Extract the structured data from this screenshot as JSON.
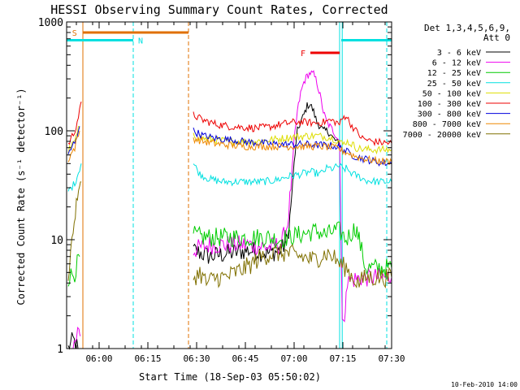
{
  "chart_data": {
    "type": "line",
    "title": "HESSI Observing Summary Count Rates, Corrected",
    "xlabel": "Start Time (18-Sep-03 05:50:02)",
    "ylabel": "Corrected Count Rate (s⁻¹ detector⁻¹)",
    "x_unit": "minutes since 05:50:02",
    "xlim": [
      0,
      100
    ],
    "ylim": [
      1,
      1000
    ],
    "yscale": "log",
    "x_ticks": [
      {
        "x": 10,
        "label": "06:00"
      },
      {
        "x": 25,
        "label": "06:15"
      },
      {
        "x": 40,
        "label": "06:30"
      },
      {
        "x": 55,
        "label": "06:45"
      },
      {
        "x": 70,
        "label": "07:00"
      },
      {
        "x": 85,
        "label": "07:15"
      },
      {
        "x": 100,
        "label": "07:30"
      }
    ],
    "y_ticks": [
      {
        "y": 1,
        "label": "1"
      },
      {
        "y": 10,
        "label": "10"
      },
      {
        "y": 100,
        "label": "100"
      },
      {
        "y": 1000,
        "label": "1000"
      }
    ],
    "legend": {
      "header": [
        "Det 1,3,4,5,6,9,",
        "Att 0"
      ],
      "position": "right"
    },
    "footer_date": "10-Feb-2010 14:00",
    "flags": [
      {
        "label": "S",
        "color": "#e07000",
        "y": 800,
        "x_start": 5,
        "x_end": 37.5,
        "label_x": 1.7
      },
      {
        "label": "N",
        "color": "#00e0e0",
        "y": 680,
        "x_start": 0,
        "x_end": 20.5,
        "label_x": 22.0
      },
      {
        "label": "N",
        "color": "#00e0e0",
        "y": 680,
        "x_start": 84.5,
        "x_end": 100,
        "label_x": null
      },
      {
        "label": "F",
        "color": "#ee0000",
        "y": 520,
        "x_start": 75,
        "x_end": 84,
        "label_x": 72.0
      }
    ],
    "vlines": [
      {
        "x": 0.0,
        "color": "#00e0e0",
        "dash": false
      },
      {
        "x": 5.0,
        "color": "#e07000",
        "dash": false
      },
      {
        "x": 20.5,
        "color": "#00e0e0",
        "dash": true
      },
      {
        "x": 37.5,
        "color": "#e07000",
        "dash": true
      },
      {
        "x": 84.0,
        "color": "#00e0e0",
        "dash": false
      },
      {
        "x": 84.8,
        "color": "#00e0e0",
        "dash": false
      },
      {
        "x": 98.5,
        "color": "#00e0e0",
        "dash": true
      }
    ],
    "series": [
      {
        "name": "3 - 6 keV",
        "color": "#000000",
        "segments": [
          [
            [
              0.5,
              1.0
            ],
            [
              2.0,
              1.2
            ],
            [
              3.5,
              1.0
            ]
          ],
          [
            [
              39,
              8.0
            ],
            [
              44,
              7.0
            ],
            [
              50,
              7.5
            ],
            [
              56,
              8.0
            ],
            [
              62,
              7.5
            ],
            [
              66,
              8.0
            ],
            [
              68,
              10
            ],
            [
              69,
              20
            ],
            [
              70,
              50
            ],
            [
              71,
              100
            ],
            [
              72,
              120
            ],
            [
              73,
              140
            ],
            [
              74,
              170
            ],
            [
              75,
              175
            ],
            [
              76,
              150
            ],
            [
              77,
              120
            ],
            [
              78,
              110
            ],
            [
              79,
              100
            ],
            [
              80,
              100
            ],
            [
              81,
              95
            ],
            [
              82,
              85
            ],
            [
              83,
              80
            ],
            [
              84,
              75
            ],
            [
              84.5,
              70
            ]
          ]
        ]
      },
      {
        "name": "6 - 12 keV",
        "color": "#ee00ee",
        "segments": [
          [
            [
              2.0,
              1.0
            ],
            [
              3.0,
              1.3
            ],
            [
              3.8,
              1.6
            ],
            [
              4.2,
              1.3
            ]
          ],
          [
            [
              39,
              8.0
            ],
            [
              44,
              9.0
            ],
            [
              50,
              9.0
            ],
            [
              56,
              9.0
            ],
            [
              62,
              8.5
            ],
            [
              66,
              9.0
            ],
            [
              68,
              14
            ],
            [
              69,
              30
            ],
            [
              70,
              80
            ],
            [
              71,
              150
            ],
            [
              72,
              220
            ],
            [
              73,
              280
            ],
            [
              74,
              320
            ],
            [
              75,
              340
            ],
            [
              76,
              330
            ],
            [
              77,
              280
            ],
            [
              78,
              210
            ],
            [
              79,
              150
            ],
            [
              80,
              120
            ],
            [
              81,
              110
            ],
            [
              82,
              100
            ],
            [
              83,
              90
            ],
            [
              84,
              80
            ],
            [
              84.8,
              2.0
            ],
            [
              85.5,
              1.5
            ],
            [
              86,
              4.0
            ],
            [
              88,
              4.3
            ],
            [
              91,
              4.5
            ],
            [
              95,
              4.5
            ],
            [
              100,
              4.5
            ]
          ]
        ]
      },
      {
        "name": "12 - 25 keV",
        "color": "#00cc00",
        "segments": [
          [
            [
              0.5,
              4.5
            ],
            [
              2.5,
              5.0
            ],
            [
              4.0,
              7.0
            ]
          ],
          [
            [
              39,
              11
            ],
            [
              42,
              10.5
            ],
            [
              46,
              10.5
            ],
            [
              50,
              10.5
            ],
            [
              54,
              10.5
            ],
            [
              58,
              10.5
            ],
            [
              62,
              10.5
            ],
            [
              65,
              10
            ],
            [
              68,
              10.5
            ],
            [
              71,
              11
            ],
            [
              74,
              11.5
            ],
            [
              77,
              12
            ],
            [
              80,
              11
            ],
            [
              82,
              12
            ],
            [
              84,
              12
            ],
            [
              86,
              10
            ],
            [
              88,
              12
            ],
            [
              89,
              13
            ],
            [
              90,
              10
            ],
            [
              92,
              5.5
            ],
            [
              95,
              5.5
            ],
            [
              100,
              5.5
            ]
          ]
        ]
      },
      {
        "name": "25 - 50 keV",
        "color": "#00e0e0",
        "segments": [
          [
            [
              0.5,
              28
            ],
            [
              2.5,
              33
            ],
            [
              4.0,
              45
            ],
            [
              4.5,
              50
            ]
          ],
          [
            [
              39,
              50
            ],
            [
              41,
              40
            ],
            [
              44,
              36
            ],
            [
              48,
              34
            ],
            [
              52,
              34
            ],
            [
              56,
              34
            ],
            [
              60,
              34
            ],
            [
              64,
              35
            ],
            [
              68,
              38
            ],
            [
              72,
              40
            ],
            [
              75,
              42
            ],
            [
              78,
              40
            ],
            [
              80,
              45
            ],
            [
              82,
              45
            ],
            [
              84,
              48
            ],
            [
              85,
              44
            ],
            [
              86,
              45
            ],
            [
              88,
              40
            ],
            [
              90,
              38
            ],
            [
              92,
              35
            ],
            [
              96,
              34
            ],
            [
              100,
              34
            ]
          ]
        ]
      },
      {
        "name": "50 - 100 keV",
        "color": "#dddd00",
        "segments": [
          [
            [
              0.5,
              65
            ],
            [
              2.5,
              80
            ],
            [
              4.0,
              110
            ]
          ],
          [
            [
              39,
              90
            ],
            [
              42,
              85
            ],
            [
              46,
              82
            ],
            [
              50,
              80
            ],
            [
              54,
              80
            ],
            [
              58,
              80
            ],
            [
              62,
              82
            ],
            [
              66,
              85
            ],
            [
              70,
              88
            ],
            [
              74,
              90
            ],
            [
              77,
              90
            ],
            [
              80,
              88
            ],
            [
              82,
              85
            ],
            [
              84,
              80
            ],
            [
              85,
              75
            ],
            [
              86,
              80
            ],
            [
              88,
              75
            ],
            [
              89,
              70
            ],
            [
              91,
              68
            ],
            [
              95,
              67
            ],
            [
              100,
              67
            ]
          ]
        ]
      },
      {
        "name": "100 - 300 keV",
        "color": "#ee0000",
        "segments": [
          [
            [
              0.5,
              75
            ],
            [
              2.5,
              100
            ],
            [
              4.0,
              150
            ],
            [
              4.5,
              185
            ]
          ],
          [
            [
              39,
              140
            ],
            [
              42,
              125
            ],
            [
              46,
              115
            ],
            [
              50,
              110
            ],
            [
              54,
              108
            ],
            [
              58,
              106
            ],
            [
              62,
              108
            ],
            [
              66,
              115
            ],
            [
              70,
              120
            ],
            [
              73,
              120
            ],
            [
              76,
              118
            ],
            [
              79,
              120
            ],
            [
              81,
              125
            ],
            [
              83,
              120
            ],
            [
              84,
              115
            ],
            [
              85,
              130
            ],
            [
              86,
              140
            ],
            [
              87,
              120
            ],
            [
              89,
              100
            ],
            [
              91,
              85
            ],
            [
              94,
              80
            ],
            [
              97,
              78
            ],
            [
              100,
              77
            ]
          ]
        ]
      },
      {
        "name": "300 - 800 keV",
        "color": "#0000dd",
        "segments": [
          [
            [
              0.5,
              60
            ],
            [
              2.5,
              80
            ],
            [
              4.0,
              110
            ]
          ],
          [
            [
              39,
              100
            ],
            [
              42,
              90
            ],
            [
              46,
              85
            ],
            [
              50,
              83
            ],
            [
              54,
              80
            ],
            [
              58,
              78
            ],
            [
              62,
              76
            ],
            [
              66,
              75
            ],
            [
              70,
              75
            ],
            [
              74,
              75
            ],
            [
              78,
              74
            ],
            [
              82,
              73
            ],
            [
              84,
              70
            ],
            [
              85,
              68
            ],
            [
              87,
              62
            ],
            [
              89,
              58
            ],
            [
              92,
              55
            ],
            [
              95,
              52
            ],
            [
              100,
              50
            ]
          ]
        ]
      },
      {
        "name": "800 - 7000 keV",
        "color": "#ee8800",
        "segments": [
          [
            [
              0.5,
              55
            ],
            [
              2.5,
              70
            ],
            [
              4.0,
              100
            ]
          ],
          [
            [
              39,
              85
            ],
            [
              42,
              80
            ],
            [
              46,
              76
            ],
            [
              50,
              74
            ],
            [
              54,
              72
            ],
            [
              58,
              72
            ],
            [
              62,
              72
            ],
            [
              66,
              72
            ],
            [
              70,
              72
            ],
            [
              74,
              72
            ],
            [
              78,
              72
            ],
            [
              82,
              70
            ],
            [
              84,
              68
            ],
            [
              85,
              65
            ],
            [
              87,
              62
            ],
            [
              89,
              58
            ],
            [
              92,
              55
            ],
            [
              95,
              53
            ],
            [
              100,
              52
            ]
          ]
        ]
      },
      {
        "name": "7000 - 20000 keV",
        "color": "#807000",
        "segments": [
          [
            [
              0.5,
              5.0
            ],
            [
              2.0,
              12
            ],
            [
              3.0,
              22
            ],
            [
              4.0,
              30
            ],
            [
              4.5,
              34
            ]
          ],
          [
            [
              39,
              4.5
            ],
            [
              41,
              5.0
            ],
            [
              43,
              4.0
            ],
            [
              46,
              4.5
            ],
            [
              49,
              4.5
            ],
            [
              52,
              5.0
            ],
            [
              55,
              5.5
            ],
            [
              57,
              6.0
            ],
            [
              60,
              7.0
            ],
            [
              64,
              7.5
            ],
            [
              68,
              7.5
            ],
            [
              72,
              7.0
            ],
            [
              76,
              6.5
            ],
            [
              80,
              7.5
            ],
            [
              82,
              7.0
            ],
            [
              84,
              6.0
            ],
            [
              86,
              5.5
            ],
            [
              88,
              4.5
            ],
            [
              90,
              4.0
            ],
            [
              92,
              4.5
            ],
            [
              95,
              4.5
            ],
            [
              100,
              4.5
            ]
          ]
        ]
      }
    ]
  }
}
